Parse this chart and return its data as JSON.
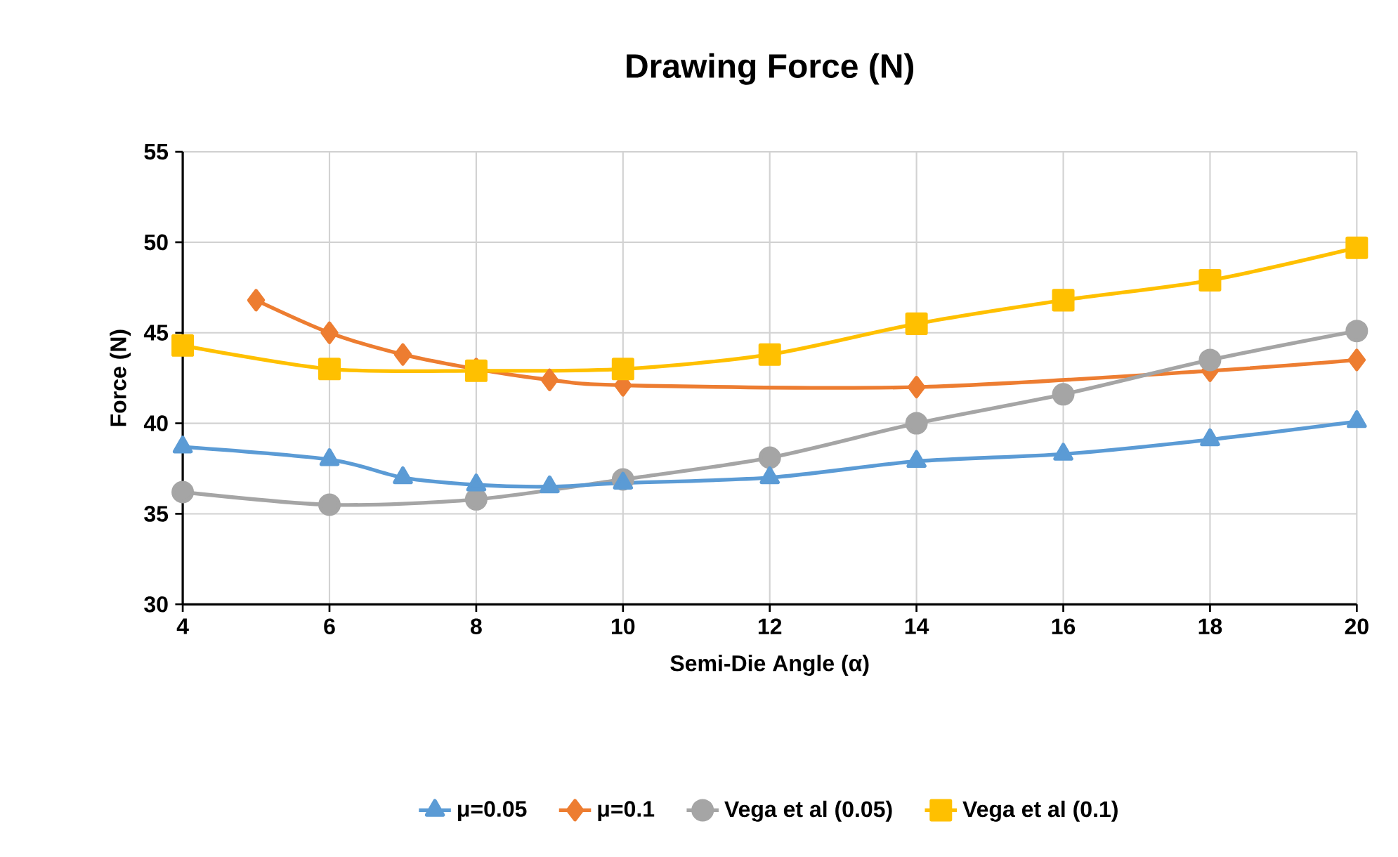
{
  "chart_data": {
    "type": "line",
    "title": "Drawing Force (N)",
    "xlabel": "Semi-Die Angle (α)",
    "ylabel": "Force (N)",
    "xlim": [
      4,
      20
    ],
    "xticks": [
      4,
      6,
      8,
      10,
      12,
      14,
      16,
      18,
      20
    ],
    "ylim": [
      30,
      55
    ],
    "yticks": [
      30,
      35,
      40,
      45,
      50,
      55
    ],
    "grid": true,
    "legend": "bottom",
    "series": [
      {
        "name": "μ=0.05",
        "color": "#5b9bd5",
        "marker": "triangle",
        "x": [
          4,
          6,
          7,
          8,
          9,
          10,
          12,
          14,
          16,
          18,
          20
        ],
        "values": [
          38.7,
          38.0,
          37.0,
          36.6,
          36.5,
          36.7,
          37.0,
          37.9,
          38.3,
          39.1,
          40.1
        ]
      },
      {
        "name": "μ=0.1",
        "color": "#ed7d31",
        "marker": "diamond",
        "x": [
          5,
          6,
          7,
          8,
          9,
          10,
          14,
          18,
          20
        ],
        "values": [
          46.8,
          45.0,
          43.8,
          43.0,
          42.4,
          42.1,
          42.0,
          42.9,
          43.5
        ]
      },
      {
        "name": "Vega et al (0.05)",
        "color": "#a5a5a5",
        "marker": "circle",
        "x": [
          4,
          6,
          8,
          10,
          12,
          14,
          16,
          18,
          20
        ],
        "values": [
          36.2,
          35.5,
          35.8,
          36.9,
          38.1,
          40.0,
          41.6,
          43.5,
          45.1
        ]
      },
      {
        "name": "Vega et al (0.1)",
        "color": "#ffc000",
        "marker": "square",
        "x": [
          4,
          6,
          8,
          10,
          12,
          14,
          16,
          18,
          20
        ],
        "values": [
          44.3,
          43.0,
          42.9,
          43.0,
          43.8,
          45.5,
          46.8,
          47.9,
          49.7
        ]
      }
    ]
  }
}
